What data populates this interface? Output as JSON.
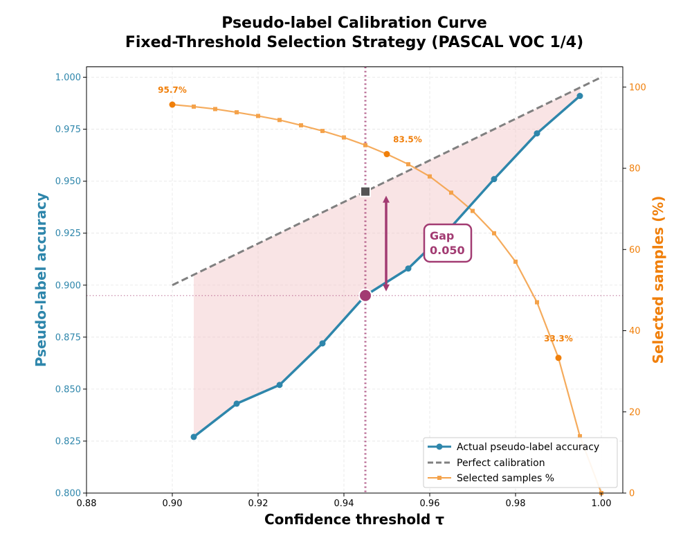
{
  "chart_data": {
    "type": "line",
    "title_line1": "Pseudo-label Calibration Curve",
    "title_line2": "Fixed-Threshold Selection Strategy (PASCAL VOC 1/4)",
    "xlabel": "Confidence threshold τ",
    "ylabel_left": "Pseudo-label accuracy",
    "ylabel_right": "Selected samples (%)",
    "xlim": [
      0.88,
      1.005
    ],
    "ylim_left": [
      0.8,
      1.005
    ],
    "ylim_right": [
      0,
      105
    ],
    "grid": true,
    "x_ticks": [
      0.88,
      0.9,
      0.92,
      0.94,
      0.96,
      0.98,
      1.0
    ],
    "x_tick_labels": [
      "0.88",
      "0.90",
      "0.92",
      "0.94",
      "0.96",
      "0.98",
      "1.00"
    ],
    "y_left_ticks": [
      0.8,
      0.825,
      0.85,
      0.875,
      0.9,
      0.925,
      0.95,
      0.975,
      1.0
    ],
    "y_left_tick_labels": [
      "0.800",
      "0.825",
      "0.850",
      "0.875",
      "0.900",
      "0.925",
      "0.950",
      "0.975",
      "1.000"
    ],
    "y_right_ticks": [
      0,
      20,
      40,
      60,
      80,
      100
    ],
    "y_right_tick_labels": [
      "0",
      "20",
      "40",
      "60",
      "80",
      "100"
    ],
    "colors": {
      "accuracy": "#2e86ab",
      "calibration": "#808080",
      "selected": "#f4a24a",
      "selected_text": "#f07f0a",
      "highlight": "#a23b72",
      "fill": "#f2c4c6",
      "marker_square": "#555555",
      "left_axis_text": "#2e86ab",
      "right_axis_text": "#f07f0a"
    },
    "series": [
      {
        "name": "Actual pseudo-label accuracy",
        "axis": "left",
        "x": [
          0.905,
          0.915,
          0.925,
          0.935,
          0.945,
          0.955,
          0.965,
          0.975,
          0.985,
          0.995
        ],
        "y": [
          0.827,
          0.843,
          0.852,
          0.872,
          0.895,
          0.908,
          0.928,
          0.951,
          0.973,
          0.991
        ]
      },
      {
        "name": "Perfect calibration",
        "axis": "left",
        "x": [
          0.9,
          1.0
        ],
        "y": [
          0.9,
          1.0
        ]
      },
      {
        "name": "Selected samples %",
        "axis": "right",
        "x": [
          0.9,
          0.905,
          0.91,
          0.915,
          0.92,
          0.925,
          0.93,
          0.935,
          0.94,
          0.945,
          0.95,
          0.955,
          0.96,
          0.965,
          0.97,
          0.975,
          0.98,
          0.985,
          0.99,
          0.995,
          1.0
        ],
        "y": [
          95.7,
          95.2,
          94.6,
          93.8,
          92.9,
          91.9,
          90.6,
          89.2,
          87.6,
          85.7,
          83.5,
          81.0,
          78.0,
          74.0,
          69.5,
          64.0,
          57.0,
          47.0,
          33.3,
          14.0,
          0.0
        ]
      }
    ],
    "highlight_points_selected_x": [
      0.9,
      0.95,
      0.99
    ],
    "annotations": [
      {
        "text": "95.7%",
        "x": 0.9,
        "y": 95.7
      },
      {
        "text": "83.5%",
        "x": 0.95,
        "y": 83.5
      },
      {
        "text": "33.3%",
        "x": 0.99,
        "y": 33.3
      }
    ],
    "operating_point": {
      "x": 0.945,
      "actual": 0.895,
      "ideal": 0.945
    },
    "gap_label": "Gap",
    "gap_value": "0.050",
    "legend_position": "lower-right"
  }
}
